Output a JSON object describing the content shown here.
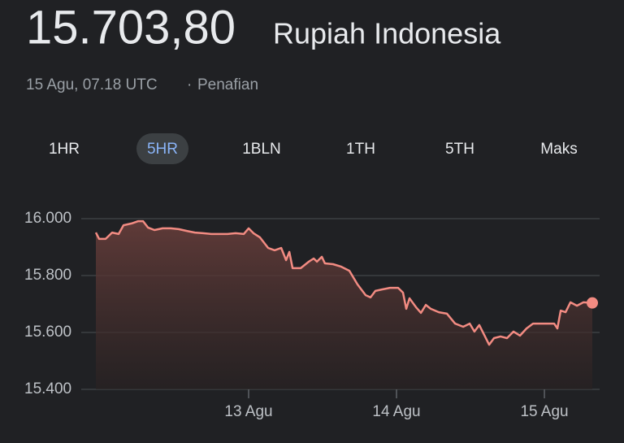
{
  "header": {
    "price": "15.703,80",
    "currency": "Rupiah Indonesia",
    "timestamp": "15 Agu, 07.18 UTC",
    "separator": "·",
    "disclaimer": "Penafian"
  },
  "tabs": {
    "labels": [
      "1HR",
      "5HR",
      "1BLN",
      "1TH",
      "5TH",
      "Maks"
    ],
    "selected": 1
  },
  "chart_data": {
    "type": "line",
    "color": "#f28b82",
    "grid": true,
    "x": [
      11.967,
      11.989,
      12.033,
      12.077,
      12.121,
      12.154,
      12.209,
      12.253,
      12.286,
      12.319,
      12.363,
      12.418,
      12.473,
      12.527,
      12.582,
      12.637,
      12.692,
      12.747,
      12.802,
      12.857,
      12.912,
      12.967,
      13,
      13.033,
      13.077,
      13.132,
      13.176,
      13.22,
      13.253,
      13.275,
      13.297,
      13.352,
      13.407,
      13.44,
      13.462,
      13.495,
      13.516,
      13.571,
      13.626,
      13.681,
      13.736,
      13.791,
      13.824,
      13.857,
      13.901,
      13.956,
      14.011,
      14.044,
      14.066,
      14.088,
      14.132,
      14.165,
      14.198,
      14.231,
      14.286,
      14.341,
      14.396,
      14.451,
      14.495,
      14.527,
      14.56,
      14.593,
      14.626,
      14.659,
      14.703,
      14.747,
      14.791,
      14.835,
      14.879,
      14.923,
      14.978,
      15.033,
      15.066,
      15.088,
      15.11,
      15.143,
      15.176,
      15.22,
      15.264,
      15.324
    ],
    "values": [
      15951,
      15929,
      15929,
      15951,
      15946,
      15977,
      15983,
      15991,
      15991,
      15969,
      15960,
      15966,
      15966,
      15963,
      15957,
      15951,
      15949,
      15946,
      15946,
      15946,
      15949,
      15946,
      15966,
      15949,
      15934,
      15897,
      15889,
      15897,
      15854,
      15883,
      15826,
      15826,
      15849,
      15860,
      15849,
      15866,
      15843,
      15840,
      15831,
      15817,
      15769,
      15731,
      15723,
      15746,
      15751,
      15757,
      15757,
      15740,
      15683,
      15720,
      15689,
      15669,
      15697,
      15683,
      15671,
      15666,
      15631,
      15620,
      15631,
      15603,
      15626,
      15591,
      15557,
      15580,
      15586,
      15580,
      15603,
      15589,
      15614,
      15631,
      15631,
      15631,
      15631,
      15614,
      15677,
      15671,
      15706,
      15694,
      15706,
      15703.8
    ],
    "xlim": [
      11.967,
      15.324
    ],
    "xticks": [
      {
        "value": 13,
        "label": "13 Agu"
      },
      {
        "value": 14,
        "label": "14 Agu"
      },
      {
        "value": 15,
        "label": "15 Agu"
      }
    ],
    "ylim": [
      15400,
      16000
    ],
    "yticks": [
      {
        "value": 15400,
        "label": "15.400"
      },
      {
        "value": 15600,
        "label": "15.600"
      },
      {
        "value": 15800,
        "label": "15.800"
      },
      {
        "value": 16000,
        "label": "16.000"
      }
    ]
  }
}
